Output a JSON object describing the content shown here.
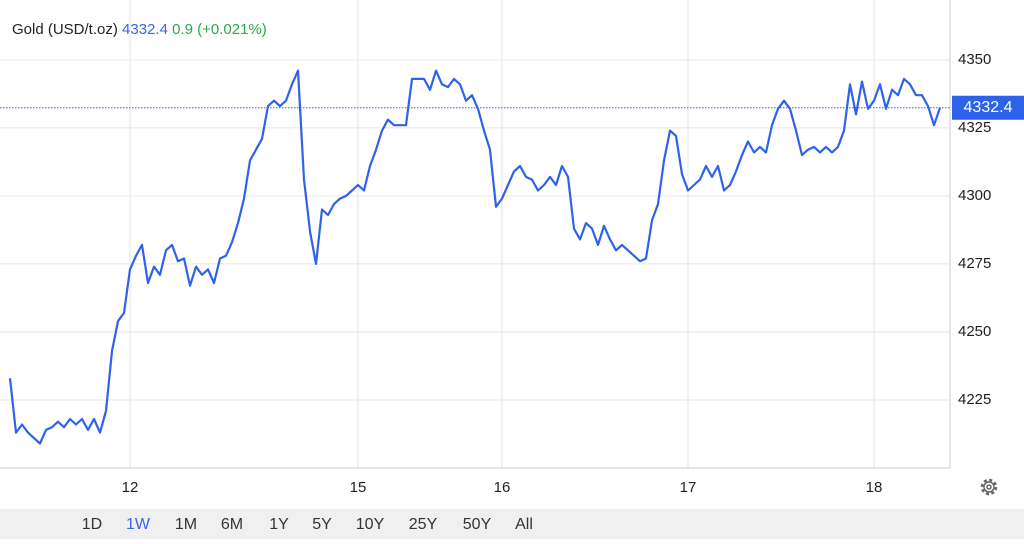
{
  "chart_data": {
    "type": "line",
    "title": "Gold (USD/t.oz)",
    "price": 4332.4,
    "change": "0.9 (+0.021%)",
    "series": [
      {
        "name": "Gold",
        "color": "#2f62ea",
        "values": [
          4233,
          4213,
          4216,
          4213,
          4211,
          4209,
          4214,
          4215,
          4217,
          4215,
          4218,
          4216,
          4218,
          4214,
          4218,
          4213,
          4221,
          4243,
          4254,
          4257,
          4273,
          4278,
          4282,
          4268,
          4274,
          4271,
          4280,
          4282,
          4276,
          4277,
          4267,
          4274,
          4271,
          4273,
          4268,
          4277,
          4278,
          4283,
          4290,
          4299,
          4313,
          4317,
          4321,
          4333,
          4335,
          4333,
          4335,
          4341,
          4346,
          4306,
          4287,
          4275,
          4295,
          4293,
          4297,
          4299,
          4300,
          4302,
          4304,
          4302,
          4311,
          4317,
          4324,
          4328,
          4326,
          4326,
          4326,
          4343,
          4343,
          4343,
          4339,
          4346,
          4341,
          4340,
          4343,
          4341,
          4335,
          4337,
          4332,
          4324,
          4317,
          4296,
          4299,
          4304,
          4309,
          4311,
          4307,
          4306,
          4302,
          4304,
          4307,
          4304,
          4311,
          4307,
          4288,
          4284,
          4290,
          4288,
          4282,
          4289,
          4284,
          4280,
          4282,
          4280,
          4278,
          4276,
          4277,
          4291,
          4297,
          4313,
          4324,
          4322,
          4308,
          4302,
          4304,
          4306,
          4311,
          4307,
          4311,
          4302,
          4304,
          4309,
          4315,
          4320,
          4316,
          4318,
          4316,
          4326,
          4332,
          4335,
          4332,
          4324,
          4315,
          4317,
          4318,
          4316,
          4318,
          4316,
          4318,
          4324,
          4341,
          4330,
          4342,
          4332,
          4335,
          4341,
          4332,
          4339,
          4337,
          4343,
          4341,
          4337,
          4337,
          4333,
          4326,
          4332.4
        ]
      }
    ],
    "xlim": [
      0,
      155
    ],
    "xticks": [
      {
        "value": 20,
        "label": "12"
      },
      {
        "value": 58,
        "label": "15"
      },
      {
        "value": 82,
        "label": "16"
      },
      {
        "value": 113,
        "label": "17"
      },
      {
        "value": 144,
        "label": "18"
      }
    ],
    "ylim": [
      4200,
      4372
    ],
    "yticks": [
      4225,
      4250,
      4275,
      4300,
      4325,
      4350
    ],
    "grid": true,
    "range_buttons": [
      "1D",
      "1W",
      "1M",
      "6M",
      "1Y",
      "5Y",
      "10Y",
      "25Y",
      "50Y",
      "All"
    ],
    "active_range": 1
  }
}
